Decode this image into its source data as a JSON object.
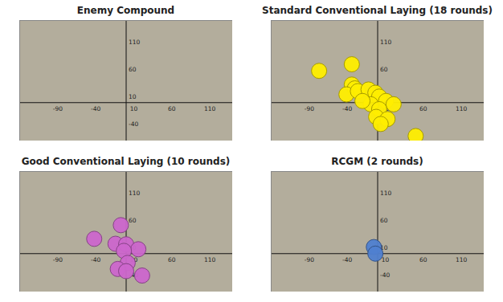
{
  "chart_data": [
    {
      "type": "scatter",
      "title": "Enemy Compound",
      "xlim": [
        -140,
        140
      ],
      "ylim": [
        -70,
        150
      ],
      "xticks": [
        -90,
        -40,
        10,
        60,
        110
      ],
      "yticks": [
        -40,
        10,
        60,
        110
      ],
      "series": []
    },
    {
      "type": "scatter",
      "title": "Standard Conventional Laying (18 rounds)",
      "xlim": [
        -140,
        140
      ],
      "ylim": [
        -70,
        150
      ],
      "xticks": [
        -90,
        -40,
        10,
        60,
        110
      ],
      "yticks": [
        -40,
        10,
        60,
        110
      ],
      "series": [
        {
          "color": "#ffee00",
          "x": [
            -77,
            -34,
            -34,
            -30,
            -41,
            -26,
            -12,
            -3,
            2,
            -9,
            11,
            21,
            2,
            -2,
            13,
            4,
            50,
            -20
          ],
          "y": [
            58,
            70,
            33,
            26,
            15,
            21,
            24,
            18,
            11,
            -3,
            3,
            -3,
            -12,
            -26,
            -30,
            -39,
            -61,
            3
          ]
        }
      ]
    },
    {
      "type": "scatter",
      "title": "Good Conventional Laying (10 rounds)",
      "xlim": [
        -140,
        140
      ],
      "ylim": [
        -70,
        150
      ],
      "xticks": [
        -90,
        -40,
        10,
        60,
        110
      ],
      "yticks": [
        -40,
        10,
        60,
        110
      ],
      "series": [
        {
          "color": "#cc66cc",
          "x": [
            -7,
            -42,
            -14,
            0,
            16,
            -3,
            2,
            -11,
            0,
            21
          ],
          "y": [
            52,
            27,
            18,
            17,
            8,
            5,
            -17,
            -28,
            -32,
            -40
          ]
        }
      ]
    },
    {
      "type": "scatter",
      "title": "RCGM (2 rounds)",
      "xlim": [
        -140,
        140
      ],
      "ylim": [
        -70,
        150
      ],
      "xticks": [
        -90,
        -40,
        10,
        60,
        110
      ],
      "yticks": [
        -40,
        10,
        60,
        110
      ],
      "series": [
        {
          "color": "#4f7fd0",
          "x": [
            -5,
            -3
          ],
          "y": [
            12,
            0
          ]
        }
      ]
    }
  ]
}
